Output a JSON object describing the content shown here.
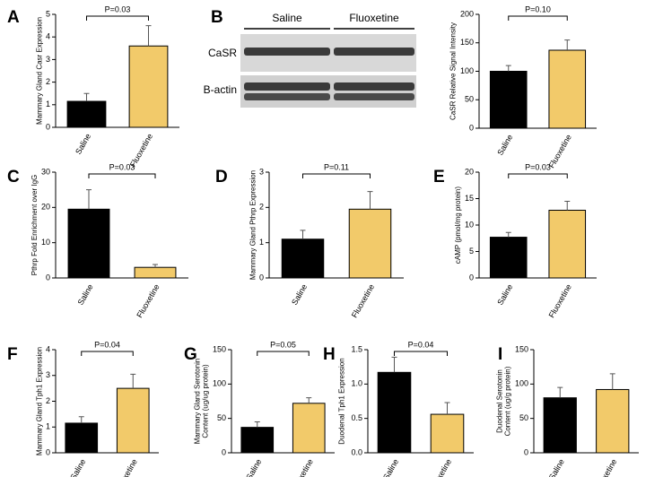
{
  "chart_data": [
    {
      "type": "bar",
      "panel": "A",
      "ylabel": "Mammary Gland Casr Expression",
      "categories": [
        "Saline",
        "Fluoxetine"
      ],
      "values": [
        1.15,
        3.6
      ],
      "errors": [
        0.35,
        0.9
      ],
      "colors": [
        "#000000",
        "#f2ca6a"
      ],
      "ylim": [
        0,
        5
      ],
      "yticks": [
        0,
        1,
        2,
        3,
        4,
        5
      ],
      "annotation": "P=0.03"
    },
    {
      "type": "bar",
      "panel": "B",
      "ylabel": "CaSR Relative Signal Intensity",
      "categories": [
        "Saline",
        "Fluoxetine"
      ],
      "values": [
        100,
        137
      ],
      "errors": [
        10,
        18
      ],
      "colors": [
        "#000000",
        "#f2ca6a"
      ],
      "ylim": [
        0,
        200
      ],
      "yticks": [
        0,
        50,
        100,
        150,
        200
      ],
      "annotation": "P=0.10"
    },
    {
      "type": "bar",
      "panel": "C",
      "ylabel": "Pthrp Fold Enrichment over IgG",
      "categories": [
        "Saline",
        "Fluoxetine"
      ],
      "values": [
        19.5,
        3
      ],
      "errors": [
        5.5,
        0.8
      ],
      "colors": [
        "#000000",
        "#f2ca6a"
      ],
      "ylim": [
        0,
        30
      ],
      "yticks": [
        0,
        10,
        20,
        30
      ],
      "annotation": "P=0.03"
    },
    {
      "type": "bar",
      "panel": "D",
      "ylabel": "Mammary Gland Pthrp Expression",
      "categories": [
        "Saline",
        "Fluoxetine"
      ],
      "values": [
        1.1,
        1.95
      ],
      "errors": [
        0.25,
        0.5
      ],
      "colors": [
        "#000000",
        "#f2ca6a"
      ],
      "ylim": [
        0,
        3
      ],
      "yticks": [
        0,
        1,
        2,
        3
      ],
      "annotation": "P=0.11"
    },
    {
      "type": "bar",
      "panel": "E",
      "ylabel": "cAMP (pmol/mg protein)",
      "categories": [
        "Saline",
        "Fluoxetine"
      ],
      "values": [
        7.7,
        12.8
      ],
      "errors": [
        0.9,
        1.7
      ],
      "colors": [
        "#000000",
        "#f2ca6a"
      ],
      "ylim": [
        0,
        20
      ],
      "yticks": [
        0,
        5,
        10,
        15,
        20
      ],
      "annotation": "P=0.03"
    },
    {
      "type": "bar",
      "panel": "F",
      "ylabel": "Mammary Gland Tph1 Expression",
      "categories": [
        "Saline",
        "Fluoxetine"
      ],
      "values": [
        1.15,
        2.5
      ],
      "errors": [
        0.25,
        0.55
      ],
      "colors": [
        "#000000",
        "#f2ca6a"
      ],
      "ylim": [
        0,
        4
      ],
      "yticks": [
        0,
        1,
        2,
        3,
        4
      ],
      "annotation": "P=0.04"
    },
    {
      "type": "bar",
      "panel": "G",
      "ylabel": [
        "Mammary Gland Serotonin",
        "Content (ug/ug protein)"
      ],
      "categories": [
        "Saline",
        "Fluoxetine"
      ],
      "values": [
        37,
        72
      ],
      "errors": [
        8,
        8
      ],
      "colors": [
        "#000000",
        "#f2ca6a"
      ],
      "ylim": [
        0,
        150
      ],
      "yticks": [
        0,
        50,
        100,
        150
      ],
      "annotation": "P=0.05"
    },
    {
      "type": "bar",
      "panel": "H",
      "ylabel": "Duodenal Tph1 Expression",
      "categories": [
        "Saline",
        "Fluoxetine"
      ],
      "values": [
        1.17,
        0.56
      ],
      "errors": [
        0.22,
        0.17
      ],
      "colors": [
        "#000000",
        "#f2ca6a"
      ],
      "ylim": [
        0,
        1.5
      ],
      "yticks": [
        {
          "value": 0,
          "label": "0.0"
        },
        0.5,
        {
          "value": 1,
          "label": "1.0"
        },
        1.5
      ],
      "annotation": "P=0.04"
    },
    {
      "type": "bar",
      "panel": "I",
      "ylabel": [
        "Duodenal Serotonin",
        "Content (ug/g protein)"
      ],
      "categories": [
        "Saline",
        "Fluoxetine"
      ],
      "values": [
        80,
        92
      ],
      "errors": [
        15,
        23
      ],
      "colors": [
        "#000000",
        "#f2ca6a"
      ],
      "ylim": [
        0,
        150
      ],
      "yticks": [
        0,
        50,
        100,
        150
      ]
    }
  ],
  "blot": {
    "groups": [
      "Saline",
      "Fluoxetine"
    ],
    "bands": [
      "CaSR",
      "B-actin"
    ]
  }
}
